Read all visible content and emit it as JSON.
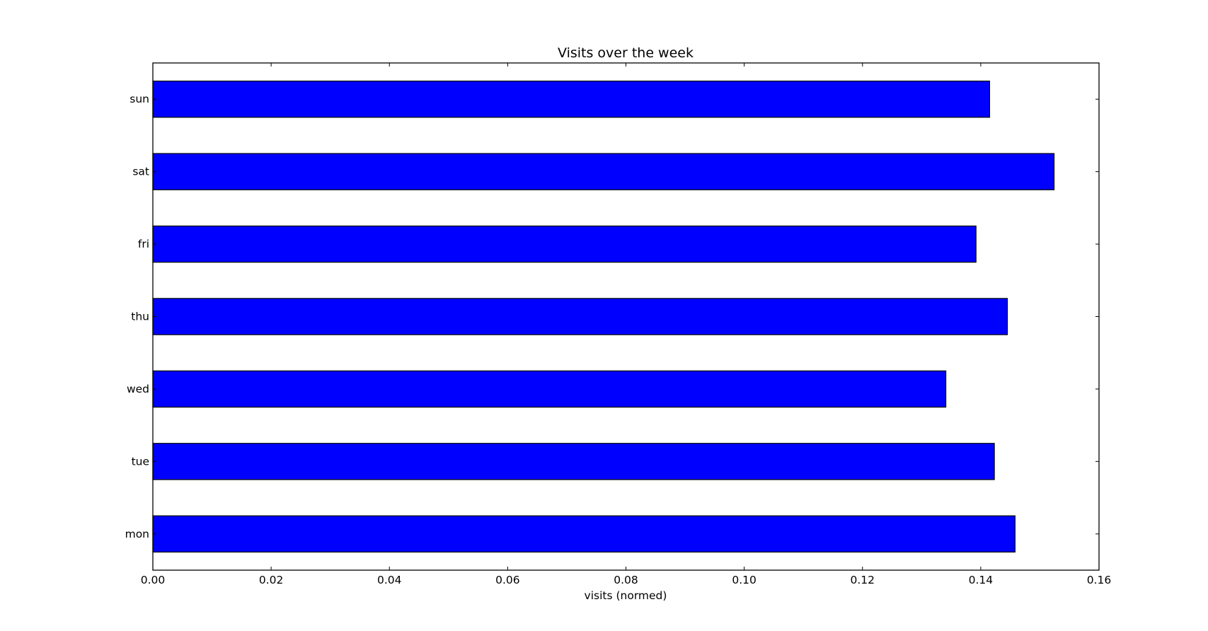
{
  "chart_data": {
    "type": "bar",
    "orientation": "horizontal",
    "title": "Visits over the week",
    "xlabel": "visits (normed)",
    "ylabel": "",
    "categories": [
      "mon",
      "tue",
      "wed",
      "thu",
      "fri",
      "sat",
      "sun"
    ],
    "values": [
      0.1458,
      0.1423,
      0.1341,
      0.1445,
      0.1392,
      0.1524,
      0.1415
    ],
    "xlim": [
      0.0,
      0.16
    ],
    "xticks": [
      0.0,
      0.02,
      0.04,
      0.06,
      0.08,
      0.1,
      0.12,
      0.14,
      0.16
    ],
    "xtick_labels": [
      "0.00",
      "0.02",
      "0.04",
      "0.06",
      "0.08",
      "0.10",
      "0.12",
      "0.14",
      "0.16"
    ],
    "grid": false,
    "legend": "none",
    "bar_color": "#0000ff",
    "bar_edge_color": "#000000"
  }
}
